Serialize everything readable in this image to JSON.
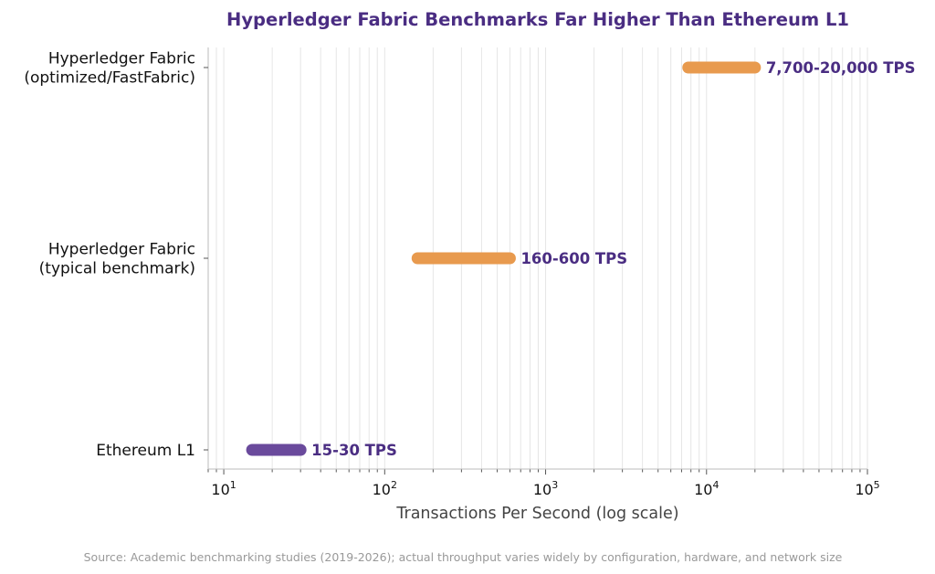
{
  "chart_data": {
    "type": "range-bar",
    "title": "Hyperledger Fabric Benchmarks Far Higher Than Ethereum L1",
    "xlabel": "Transactions Per Second (log scale)",
    "x_scale": "log",
    "xlim": [
      8,
      100000
    ],
    "grid": "x",
    "x_ticks": [
      {
        "base": "10",
        "exp": "1",
        "value": 10
      },
      {
        "base": "10",
        "exp": "2",
        "value": 100
      },
      {
        "base": "10",
        "exp": "3",
        "value": 1000
      },
      {
        "base": "10",
        "exp": "4",
        "value": 10000
      },
      {
        "base": "10",
        "exp": "5",
        "value": 100000
      }
    ],
    "series": [
      {
        "category_lines": [
          "Hyperledger Fabric",
          "(optimized/FastFabric)"
        ],
        "low": 7700,
        "high": 20000,
        "label": "7,700-20,000 TPS",
        "color": "#e89a4e"
      },
      {
        "category_lines": [
          "Hyperledger Fabric",
          "(typical benchmark)"
        ],
        "low": 160,
        "high": 600,
        "label": "160-600 TPS",
        "color": "#e89a4e"
      },
      {
        "category_lines": [
          "Ethereum L1"
        ],
        "low": 15,
        "high": 30,
        "label": "15-30 TPS",
        "color": "#6a4a9c"
      }
    ],
    "source": "Source: Academic benchmarking studies (2019-2026); actual throughput varies widely by configuration, hardware, and network size"
  }
}
